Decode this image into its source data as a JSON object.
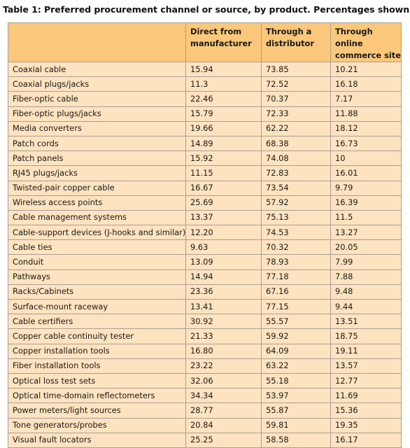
{
  "caption": "Table 1: Preferred procurement channel or source, by product. Percentages shown",
  "columns": [
    "",
    "Direct from manufacturer",
    "Through a distributor",
    "Through online commerce site"
  ],
  "rows": [
    {
      "product": "Coaxial cable",
      "direct": "15.94",
      "distributor": "73.85",
      "online": "10.21"
    },
    {
      "product": "Coaxial plugs/jacks",
      "direct": "11.3",
      "distributor": "72.52",
      "online": "16.18"
    },
    {
      "product": "Fiber-optic cable",
      "direct": "22.46",
      "distributor": "70.37",
      "online": "7.17"
    },
    {
      "product": "Fiber-optic plugs/jacks",
      "direct": "15.79",
      "distributor": "72.33",
      "online": "11.88"
    },
    {
      "product": "Media converters",
      "direct": "19.66",
      "distributor": "62.22",
      "online": "18.12"
    },
    {
      "product": "Patch cords",
      "direct": "14.89",
      "distributor": "68.38",
      "online": "16.73"
    },
    {
      "product": "Patch panels",
      "direct": "15.92",
      "distributor": "74.08",
      "online": "10"
    },
    {
      "product": "RJ45 plugs/jacks",
      "direct": "11.15",
      "distributor": "72.83",
      "online": "16.01"
    },
    {
      "product": "Twisted-pair copper cable",
      "direct": "16.67",
      "distributor": "73.54",
      "online": "9.79"
    },
    {
      "product": "Wireless access points",
      "direct": "25.69",
      "distributor": "57.92",
      "online": "16.39"
    },
    {
      "product": "Cable management systems",
      "direct": "13.37",
      "distributor": "75.13",
      "online": "11.5"
    },
    {
      "product": "Cable-support devices (J-hooks and similar)",
      "direct": "12.20",
      "distributor": "74.53",
      "online": "13.27"
    },
    {
      "product": "Cable ties",
      "direct": "9.63",
      "distributor": "70.32",
      "online": "20.05"
    },
    {
      "product": "Conduit",
      "direct": "13.09",
      "distributor": "78.93",
      "online": "7.99"
    },
    {
      "product": "Pathways",
      "direct": "14.94",
      "distributor": "77.18",
      "online": "7.88"
    },
    {
      "product": "Racks/Cabinets",
      "direct": "23.36",
      "distributor": "67.16",
      "online": "9.48"
    },
    {
      "product": "Surface-mount raceway",
      "direct": "13.41",
      "distributor": "77.15",
      "online": "9.44"
    },
    {
      "product": "Cable certifiers",
      "direct": "30.92",
      "distributor": "55.57",
      "online": "13.51"
    },
    {
      "product": "Copper cable continuity tester",
      "direct": "21.33",
      "distributor": "59.92",
      "online": "18.75"
    },
    {
      "product": "Copper installation tools",
      "direct": "16.80",
      "distributor": "64.09",
      "online": "19.11"
    },
    {
      "product": "Fiber installation tools",
      "direct": "23.22",
      "distributor": "63.22",
      "online": "13.57"
    },
    {
      "product": "Optical loss test sets",
      "direct": "32.06",
      "distributor": "55.18",
      "online": "12.77"
    },
    {
      "product": "Optical time-domain reflectometers",
      "direct": "34.34",
      "distributor": "53.97",
      "online": "11.69"
    },
    {
      "product": "Power meters/light sources",
      "direct": "28.77",
      "distributor": "55.87",
      "online": "15.36"
    },
    {
      "product": "Tone generators/probes",
      "direct": "20.84",
      "distributor": "59.81",
      "online": "19.35"
    },
    {
      "product": "Visual fault locators",
      "direct": "25.25",
      "distributor": "58.58",
      "online": "16.17"
    }
  ],
  "colors": {
    "header_fill": "#fbc77a",
    "body_fill": "#fde3bf",
    "grid_line": "#a8a098"
  }
}
